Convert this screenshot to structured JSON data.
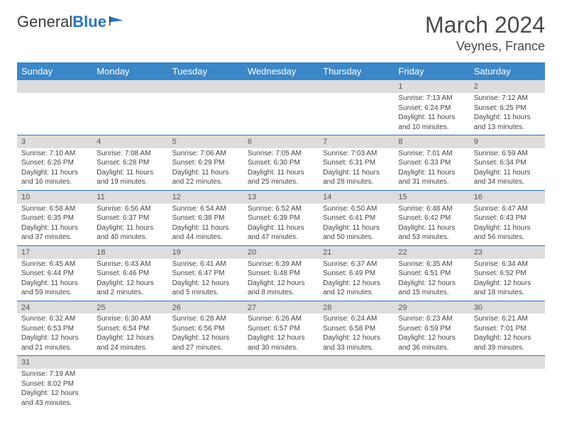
{
  "logo": {
    "text1": "General",
    "text2": "Blue"
  },
  "title": "March 2024",
  "location": "Veynes, France",
  "colors": {
    "header_bg": "#3b87c8",
    "header_fg": "#ffffff",
    "daynum_bg": "#dddddd",
    "rule": "#2b75bb",
    "brand_blue": "#2b75bb",
    "text": "#444444"
  },
  "weekdays": [
    "Sunday",
    "Monday",
    "Tuesday",
    "Wednesday",
    "Thursday",
    "Friday",
    "Saturday"
  ],
  "weeks": [
    [
      null,
      null,
      null,
      null,
      null,
      {
        "n": "1",
        "sr": "Sunrise: 7:13 AM",
        "ss": "Sunset: 6:24 PM",
        "d1": "Daylight: 11 hours",
        "d2": "and 10 minutes."
      },
      {
        "n": "2",
        "sr": "Sunrise: 7:12 AM",
        "ss": "Sunset: 6:25 PM",
        "d1": "Daylight: 11 hours",
        "d2": "and 13 minutes."
      }
    ],
    [
      {
        "n": "3",
        "sr": "Sunrise: 7:10 AM",
        "ss": "Sunset: 6:26 PM",
        "d1": "Daylight: 11 hours",
        "d2": "and 16 minutes."
      },
      {
        "n": "4",
        "sr": "Sunrise: 7:08 AM",
        "ss": "Sunset: 6:28 PM",
        "d1": "Daylight: 11 hours",
        "d2": "and 19 minutes."
      },
      {
        "n": "5",
        "sr": "Sunrise: 7:06 AM",
        "ss": "Sunset: 6:29 PM",
        "d1": "Daylight: 11 hours",
        "d2": "and 22 minutes."
      },
      {
        "n": "6",
        "sr": "Sunrise: 7:05 AM",
        "ss": "Sunset: 6:30 PM",
        "d1": "Daylight: 11 hours",
        "d2": "and 25 minutes."
      },
      {
        "n": "7",
        "sr": "Sunrise: 7:03 AM",
        "ss": "Sunset: 6:31 PM",
        "d1": "Daylight: 11 hours",
        "d2": "and 28 minutes."
      },
      {
        "n": "8",
        "sr": "Sunrise: 7:01 AM",
        "ss": "Sunset: 6:33 PM",
        "d1": "Daylight: 11 hours",
        "d2": "and 31 minutes."
      },
      {
        "n": "9",
        "sr": "Sunrise: 6:59 AM",
        "ss": "Sunset: 6:34 PM",
        "d1": "Daylight: 11 hours",
        "d2": "and 34 minutes."
      }
    ],
    [
      {
        "n": "10",
        "sr": "Sunrise: 6:58 AM",
        "ss": "Sunset: 6:35 PM",
        "d1": "Daylight: 11 hours",
        "d2": "and 37 minutes."
      },
      {
        "n": "11",
        "sr": "Sunrise: 6:56 AM",
        "ss": "Sunset: 6:37 PM",
        "d1": "Daylight: 11 hours",
        "d2": "and 40 minutes."
      },
      {
        "n": "12",
        "sr": "Sunrise: 6:54 AM",
        "ss": "Sunset: 6:38 PM",
        "d1": "Daylight: 11 hours",
        "d2": "and 44 minutes."
      },
      {
        "n": "13",
        "sr": "Sunrise: 6:52 AM",
        "ss": "Sunset: 6:39 PM",
        "d1": "Daylight: 11 hours",
        "d2": "and 47 minutes."
      },
      {
        "n": "14",
        "sr": "Sunrise: 6:50 AM",
        "ss": "Sunset: 6:41 PM",
        "d1": "Daylight: 11 hours",
        "d2": "and 50 minutes."
      },
      {
        "n": "15",
        "sr": "Sunrise: 6:48 AM",
        "ss": "Sunset: 6:42 PM",
        "d1": "Daylight: 11 hours",
        "d2": "and 53 minutes."
      },
      {
        "n": "16",
        "sr": "Sunrise: 6:47 AM",
        "ss": "Sunset: 6:43 PM",
        "d1": "Daylight: 11 hours",
        "d2": "and 56 minutes."
      }
    ],
    [
      {
        "n": "17",
        "sr": "Sunrise: 6:45 AM",
        "ss": "Sunset: 6:44 PM",
        "d1": "Daylight: 11 hours",
        "d2": "and 59 minutes."
      },
      {
        "n": "18",
        "sr": "Sunrise: 6:43 AM",
        "ss": "Sunset: 6:46 PM",
        "d1": "Daylight: 12 hours",
        "d2": "and 2 minutes."
      },
      {
        "n": "19",
        "sr": "Sunrise: 6:41 AM",
        "ss": "Sunset: 6:47 PM",
        "d1": "Daylight: 12 hours",
        "d2": "and 5 minutes."
      },
      {
        "n": "20",
        "sr": "Sunrise: 6:39 AM",
        "ss": "Sunset: 6:48 PM",
        "d1": "Daylight: 12 hours",
        "d2": "and 8 minutes."
      },
      {
        "n": "21",
        "sr": "Sunrise: 6:37 AM",
        "ss": "Sunset: 6:49 PM",
        "d1": "Daylight: 12 hours",
        "d2": "and 12 minutes."
      },
      {
        "n": "22",
        "sr": "Sunrise: 6:35 AM",
        "ss": "Sunset: 6:51 PM",
        "d1": "Daylight: 12 hours",
        "d2": "and 15 minutes."
      },
      {
        "n": "23",
        "sr": "Sunrise: 6:34 AM",
        "ss": "Sunset: 6:52 PM",
        "d1": "Daylight: 12 hours",
        "d2": "and 18 minutes."
      }
    ],
    [
      {
        "n": "24",
        "sr": "Sunrise: 6:32 AM",
        "ss": "Sunset: 6:53 PM",
        "d1": "Daylight: 12 hours",
        "d2": "and 21 minutes."
      },
      {
        "n": "25",
        "sr": "Sunrise: 6:30 AM",
        "ss": "Sunset: 6:54 PM",
        "d1": "Daylight: 12 hours",
        "d2": "and 24 minutes."
      },
      {
        "n": "26",
        "sr": "Sunrise: 6:28 AM",
        "ss": "Sunset: 6:56 PM",
        "d1": "Daylight: 12 hours",
        "d2": "and 27 minutes."
      },
      {
        "n": "27",
        "sr": "Sunrise: 6:26 AM",
        "ss": "Sunset: 6:57 PM",
        "d1": "Daylight: 12 hours",
        "d2": "and 30 minutes."
      },
      {
        "n": "28",
        "sr": "Sunrise: 6:24 AM",
        "ss": "Sunset: 6:58 PM",
        "d1": "Daylight: 12 hours",
        "d2": "and 33 minutes."
      },
      {
        "n": "29",
        "sr": "Sunrise: 6:23 AM",
        "ss": "Sunset: 6:59 PM",
        "d1": "Daylight: 12 hours",
        "d2": "and 36 minutes."
      },
      {
        "n": "30",
        "sr": "Sunrise: 6:21 AM",
        "ss": "Sunset: 7:01 PM",
        "d1": "Daylight: 12 hours",
        "d2": "and 39 minutes."
      }
    ],
    [
      {
        "n": "31",
        "sr": "Sunrise: 7:19 AM",
        "ss": "Sunset: 8:02 PM",
        "d1": "Daylight: 12 hours",
        "d2": "and 43 minutes."
      },
      null,
      null,
      null,
      null,
      null,
      null
    ]
  ]
}
